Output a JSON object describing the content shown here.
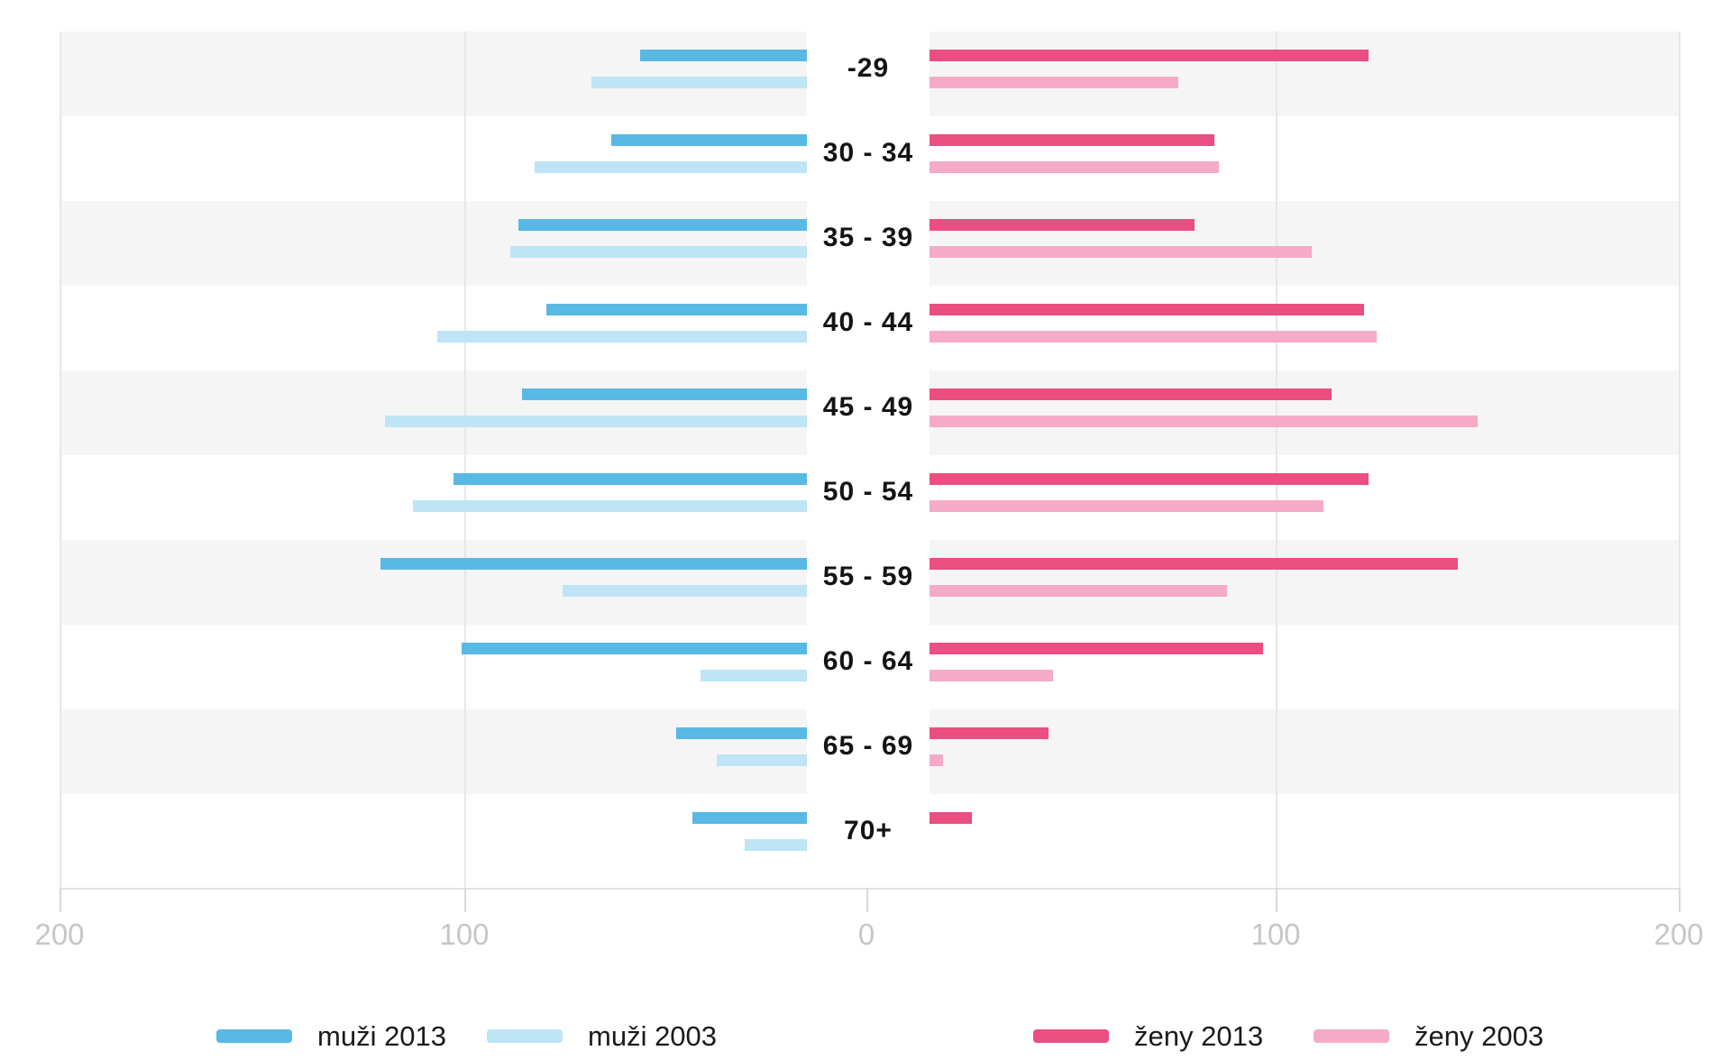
{
  "chart_data": {
    "type": "bar",
    "variant": "population-pyramid-horizontal",
    "title": "",
    "categories": [
      "-29",
      "30 - 34",
      "35 - 39",
      "40 - 44",
      "45 - 49",
      "50 - 54",
      "55 - 59",
      "60 - 64",
      "65 - 69",
      "70+"
    ],
    "series": [
      {
        "name": "muži 2013",
        "side": "left",
        "color": "#58b9e4",
        "values": [
          56,
          63,
          86,
          79,
          85,
          102,
          120,
          100,
          47,
          43
        ]
      },
      {
        "name": "muži 2003",
        "side": "left",
        "color": "#bee4f6",
        "values": [
          68,
          82,
          88,
          106,
          119,
          112,
          75,
          41,
          37,
          30
        ]
      },
      {
        "name": "ženy 2013",
        "side": "right",
        "color": "#eb4e80",
        "values": [
          124,
          86,
          81,
          123,
          115,
          124,
          146,
          98,
          45,
          26
        ]
      },
      {
        "name": "ženy 2003",
        "side": "right",
        "color": "#f5abc7",
        "values": [
          77,
          87,
          110,
          126,
          151,
          113,
          89,
          46,
          19,
          14
        ]
      }
    ],
    "x_axis": {
      "labels": [
        "200",
        "100",
        "0",
        "100",
        "200"
      ],
      "values": [
        -200,
        -100,
        0,
        100,
        200
      ],
      "max_each_side": 200,
      "grid": true
    },
    "legend": {
      "position": "bottom",
      "entries": [
        "muži 2013",
        "muži 2003",
        "ženy 2013",
        "ženy 2003"
      ]
    }
  },
  "colors": {
    "background": "#ffffff",
    "row_stripe": "#f5f5f5",
    "gridline": "#e7e7e7",
    "axis_line": "#e2e2e2",
    "axis_tick": "#d9d9d9",
    "axis_label_text": "#c6c6c6",
    "category_label_text": "#141414",
    "legend_text": "#1a1a1a"
  }
}
